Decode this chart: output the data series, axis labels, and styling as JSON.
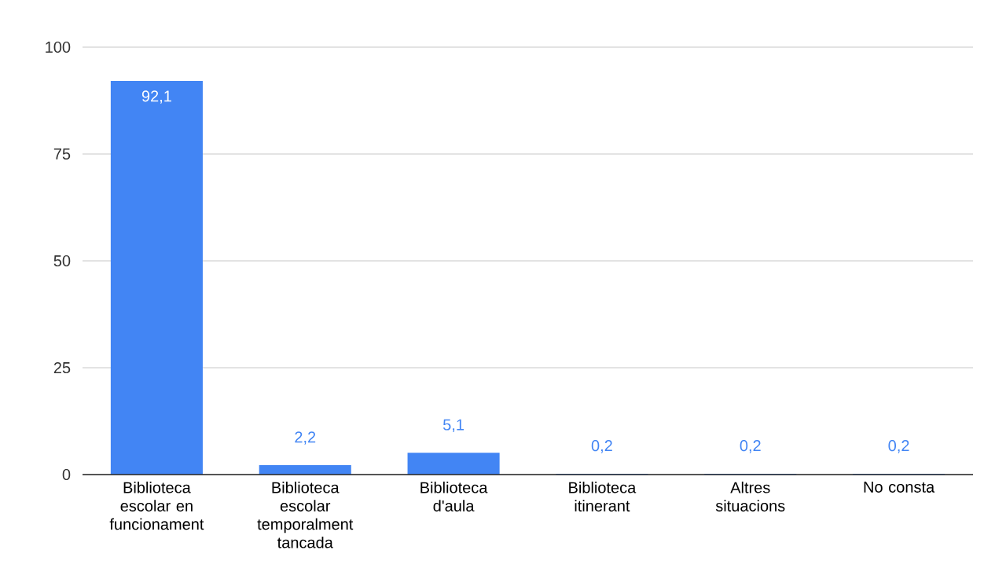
{
  "chart_data": {
    "type": "bar",
    "categories": [
      "Biblioteca escolar en funcionament",
      "Biblioteca escolar temporalment tancada",
      "Biblioteca d'aula",
      "Biblioteca itinerant",
      "Altres situacions",
      "No consta"
    ],
    "values": [
      92.1,
      2.2,
      5.1,
      0.2,
      0.2,
      0.2
    ],
    "value_labels": [
      "92,1",
      "2,2",
      "5,1",
      "0,2",
      "0,2",
      "0,2"
    ],
    "color": "#4285f4",
    "ylim": [
      0,
      100
    ],
    "yticks": [
      0,
      25,
      50,
      75,
      100
    ],
    "grid": "y"
  }
}
